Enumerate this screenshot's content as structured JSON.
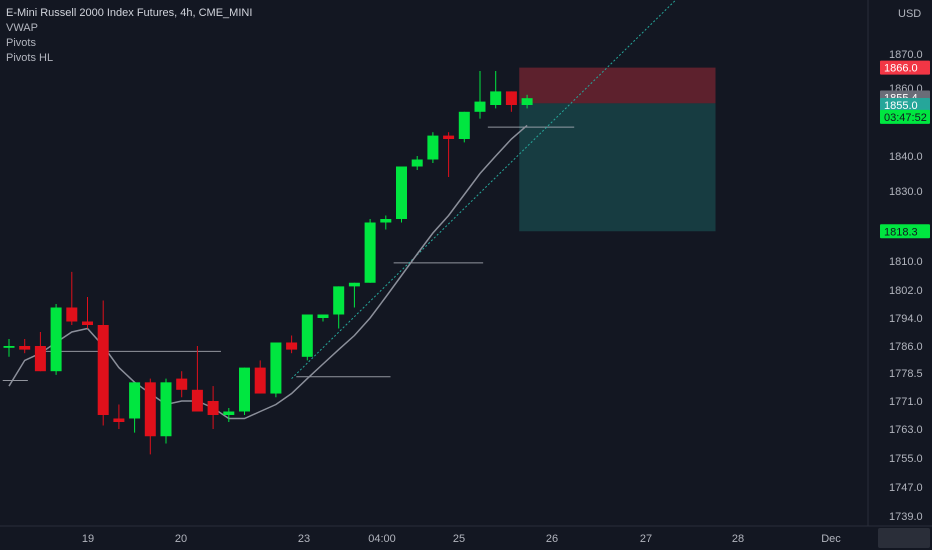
{
  "legend": {
    "title": "E-Mini Russell 2000 Index Futures, 4h, CME_MINI",
    "lines": [
      "VWAP",
      "Pivots",
      "Pivots HL"
    ]
  },
  "chart_data": {
    "type": "candlestick",
    "currency": "USD",
    "y_ticks": [
      1739.0,
      1747.0,
      1755.0,
      1763.0,
      1771.0,
      1778.5,
      1786.0,
      1794.0,
      1802.0,
      1810.0,
      1830.0,
      1840.0,
      1860.0,
      1870.0
    ],
    "x_ticks": [
      "19",
      "20",
      "23",
      "04:00",
      "25",
      "26",
      "27",
      "28",
      "Dec"
    ],
    "candles": [
      {
        "o": 1785.5,
        "h": 1788,
        "l": 1783,
        "c": 1786
      },
      {
        "o": 1786,
        "h": 1788,
        "l": 1784,
        "c": 1785
      },
      {
        "o": 1786,
        "h": 1790,
        "l": 1779,
        "c": 1779
      },
      {
        "o": 1779,
        "h": 1798,
        "l": 1778,
        "c": 1797
      },
      {
        "o": 1797,
        "h": 1807,
        "l": 1792,
        "c": 1793
      },
      {
        "o": 1793,
        "h": 1800,
        "l": 1791,
        "c": 1792
      },
      {
        "o": 1792,
        "h": 1799,
        "l": 1764,
        "c": 1767
      },
      {
        "o": 1766,
        "h": 1770,
        "l": 1763,
        "c": 1765
      },
      {
        "o": 1766,
        "h": 1776,
        "l": 1762,
        "c": 1776
      },
      {
        "o": 1776,
        "h": 1777,
        "l": 1756,
        "c": 1761
      },
      {
        "o": 1761,
        "h": 1777,
        "l": 1759,
        "c": 1776
      },
      {
        "o": 1777,
        "h": 1779,
        "l": 1772,
        "c": 1774
      },
      {
        "o": 1774,
        "h": 1786,
        "l": 1768,
        "c": 1768
      },
      {
        "o": 1771,
        "h": 1775,
        "l": 1763,
        "c": 1767
      },
      {
        "o": 1767,
        "h": 1769,
        "l": 1765,
        "c": 1768
      },
      {
        "o": 1768,
        "h": 1780,
        "l": 1767,
        "c": 1780
      },
      {
        "o": 1780,
        "h": 1782,
        "l": 1773,
        "c": 1773
      },
      {
        "o": 1773,
        "h": 1787,
        "l": 1772,
        "c": 1787
      },
      {
        "o": 1787,
        "h": 1789,
        "l": 1784,
        "c": 1785
      },
      {
        "o": 1783,
        "h": 1795,
        "l": 1782,
        "c": 1795
      },
      {
        "o": 1794,
        "h": 1795,
        "l": 1793,
        "c": 1795
      },
      {
        "o": 1795,
        "h": 1803,
        "l": 1791,
        "c": 1803
      },
      {
        "o": 1803,
        "h": 1804,
        "l": 1797,
        "c": 1804
      },
      {
        "o": 1804,
        "h": 1822,
        "l": 1804,
        "c": 1821
      },
      {
        "o": 1821,
        "h": 1823,
        "l": 1819,
        "c": 1822
      },
      {
        "o": 1822,
        "h": 1837,
        "l": 1821,
        "c": 1837
      },
      {
        "o": 1837,
        "h": 1840,
        "l": 1836,
        "c": 1839
      },
      {
        "o": 1839,
        "h": 1847,
        "l": 1838,
        "c": 1846
      },
      {
        "o": 1846,
        "h": 1847,
        "l": 1834,
        "c": 1845
      },
      {
        "o": 1845,
        "h": 1853,
        "l": 1844,
        "c": 1853
      },
      {
        "o": 1853,
        "h": 1865,
        "l": 1851,
        "c": 1856
      },
      {
        "o": 1855,
        "h": 1865,
        "l": 1854,
        "c": 1859
      },
      {
        "o": 1859,
        "h": 1859,
        "l": 1853,
        "c": 1855
      },
      {
        "o": 1855,
        "h": 1858,
        "l": 1854,
        "c": 1857
      }
    ],
    "vwap": [
      1775,
      1782,
      1784,
      1787,
      1790,
      1791,
      1786,
      1780,
      1776,
      1773,
      1770,
      1771,
      1771,
      1769,
      1766,
      1766,
      1768,
      1770,
      1773,
      1777,
      1781,
      1785,
      1789,
      1794,
      1800,
      1806,
      1812,
      1818,
      1823,
      1829,
      1835,
      1840,
      1845,
      1849
    ],
    "pivot_lines": [
      {
        "price": 1776.5,
        "from": -0.4,
        "to": 1.2
      },
      {
        "price": 1784.5,
        "from": 1.8,
        "to": 13.5
      },
      {
        "price": 1777.5,
        "from": 18.3,
        "to": 24.3
      },
      {
        "price": 1809.5,
        "from": 24.5,
        "to": 30.2
      },
      {
        "price": 1848.5,
        "from": 30.5,
        "to": 36.0
      }
    ],
    "trendline": {
      "from": {
        "i": 18.0,
        "p": 1777.0
      },
      "to": {
        "i": 43.5,
        "p": 1890.0
      }
    },
    "position": {
      "entry": 1855.5,
      "stop": 1866.0,
      "target": 1818.5,
      "from_index": 32.5,
      "to_index": 45.0
    },
    "price_tags": [
      {
        "label": "1866.0",
        "price": 1866.0,
        "bg": "#f23645",
        "fg": "#ffffff"
      },
      {
        "label": "1855.4",
        "price": 1857.2,
        "bg": "#6a6d78",
        "fg": "#ffffff"
      },
      {
        "label": "1855.0",
        "price": 1855.0,
        "bg": "#26a69a",
        "fg": "#ffffff"
      },
      {
        "label": "03:47:52",
        "price": 1851.5,
        "bg": "#00e640",
        "fg": "#131722"
      },
      {
        "label": "1818.3",
        "price": 1818.5,
        "bg": "#00e640",
        "fg": "#131722"
      }
    ],
    "colors": {
      "up": "#00e640",
      "down": "#e0101b",
      "vwap": "#8b8f9a",
      "pivot": "#b2b5be",
      "trend": "#26a69a",
      "stop_zone": "#f2364555",
      "target_zone": "#26a69a44",
      "bg": "#131722"
    }
  }
}
